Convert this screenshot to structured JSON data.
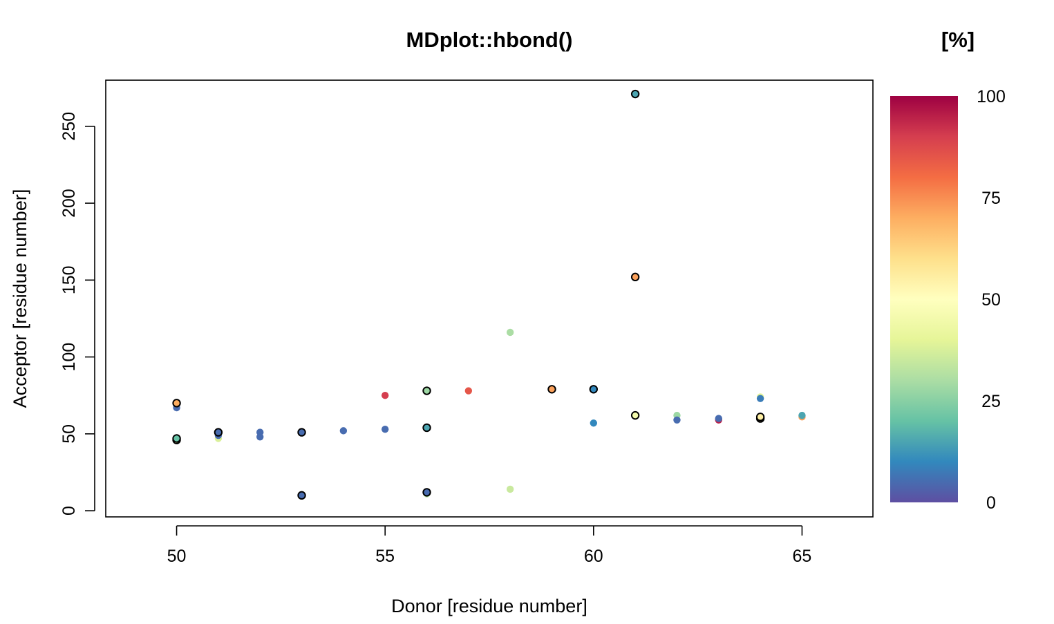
{
  "chart_data": {
    "type": "scatter",
    "title": "MDplot::hbond()",
    "xlabel": "Donor [residue number]",
    "ylabel": "Acceptor [residue number]",
    "xlim": [
      48.3,
      66.7
    ],
    "ylim": [
      -4,
      280
    ],
    "xticks": [
      50,
      55,
      60,
      65
    ],
    "yticks": [
      0,
      50,
      100,
      150,
      200,
      250
    ],
    "grid": false,
    "legend": {
      "title": "[%]",
      "type": "colorbar",
      "placement": "right",
      "ticks": [
        0,
        25,
        50,
        75,
        100
      ],
      "range": [
        0,
        100
      ],
      "palette": [
        "#5E4FA2",
        "#3288BD",
        "#66C2A5",
        "#ABDDA4",
        "#E6F598",
        "#FFFFBF",
        "#FEE08B",
        "#FDAE61",
        "#F46D43",
        "#D53E4F",
        "#9E0142"
      ]
    },
    "points": [
      {
        "x": 50,
        "y": 67,
        "pct": 5,
        "outlined": false
      },
      {
        "x": 50,
        "y": 70,
        "pct": 70,
        "outlined": true
      },
      {
        "x": 50,
        "y": 46,
        "pct": 40,
        "outlined": true
      },
      {
        "x": 50,
        "y": 47,
        "pct": 20,
        "outlined": true
      },
      {
        "x": 51,
        "y": 47,
        "pct": 38,
        "outlined": false
      },
      {
        "x": 51,
        "y": 49,
        "pct": 5,
        "outlined": false
      },
      {
        "x": 51,
        "y": 51,
        "pct": 5,
        "outlined": true
      },
      {
        "x": 52,
        "y": 48,
        "pct": 5,
        "outlined": false
      },
      {
        "x": 52,
        "y": 51,
        "pct": 5,
        "outlined": false
      },
      {
        "x": 53,
        "y": 51,
        "pct": 5,
        "outlined": true
      },
      {
        "x": 53,
        "y": 10,
        "pct": 5,
        "outlined": true
      },
      {
        "x": 54,
        "y": 52,
        "pct": 5,
        "outlined": false
      },
      {
        "x": 55,
        "y": 53,
        "pct": 5,
        "outlined": false
      },
      {
        "x": 55,
        "y": 75,
        "pct": 90,
        "outlined": false
      },
      {
        "x": 56,
        "y": 78,
        "pct": 28,
        "outlined": true
      },
      {
        "x": 56,
        "y": 54,
        "pct": 15,
        "outlined": true
      },
      {
        "x": 56,
        "y": 11,
        "pct": 32,
        "outlined": false
      },
      {
        "x": 56,
        "y": 12,
        "pct": 5,
        "outlined": true
      },
      {
        "x": 57,
        "y": 78,
        "pct": 85,
        "outlined": false
      },
      {
        "x": 58,
        "y": 116,
        "pct": 30,
        "outlined": false
      },
      {
        "x": 58,
        "y": 14,
        "pct": 35,
        "outlined": false
      },
      {
        "x": 59,
        "y": 79,
        "pct": 72,
        "outlined": true
      },
      {
        "x": 60,
        "y": 79,
        "pct": 10,
        "outlined": true
      },
      {
        "x": 60,
        "y": 57,
        "pct": 10,
        "outlined": false
      },
      {
        "x": 61,
        "y": 271,
        "pct": 15,
        "outlined": true
      },
      {
        "x": 61,
        "y": 152,
        "pct": 72,
        "outlined": true
      },
      {
        "x": 61,
        "y": 62,
        "pct": 45,
        "outlined": true
      },
      {
        "x": 62,
        "y": 62,
        "pct": 28,
        "outlined": false
      },
      {
        "x": 62,
        "y": 59,
        "pct": 5,
        "outlined": false
      },
      {
        "x": 63,
        "y": 59,
        "pct": 95,
        "outlined": false
      },
      {
        "x": 63,
        "y": 60,
        "pct": 5,
        "outlined": false
      },
      {
        "x": 64,
        "y": 74,
        "pct": 40,
        "outlined": false
      },
      {
        "x": 64,
        "y": 73,
        "pct": 8,
        "outlined": false
      },
      {
        "x": 64,
        "y": 60,
        "pct": 62,
        "outlined": true
      },
      {
        "x": 64,
        "y": 61,
        "pct": 55,
        "outlined": true
      },
      {
        "x": 65,
        "y": 61,
        "pct": 72,
        "outlined": false
      },
      {
        "x": 65,
        "y": 62,
        "pct": 15,
        "outlined": false
      }
    ]
  }
}
